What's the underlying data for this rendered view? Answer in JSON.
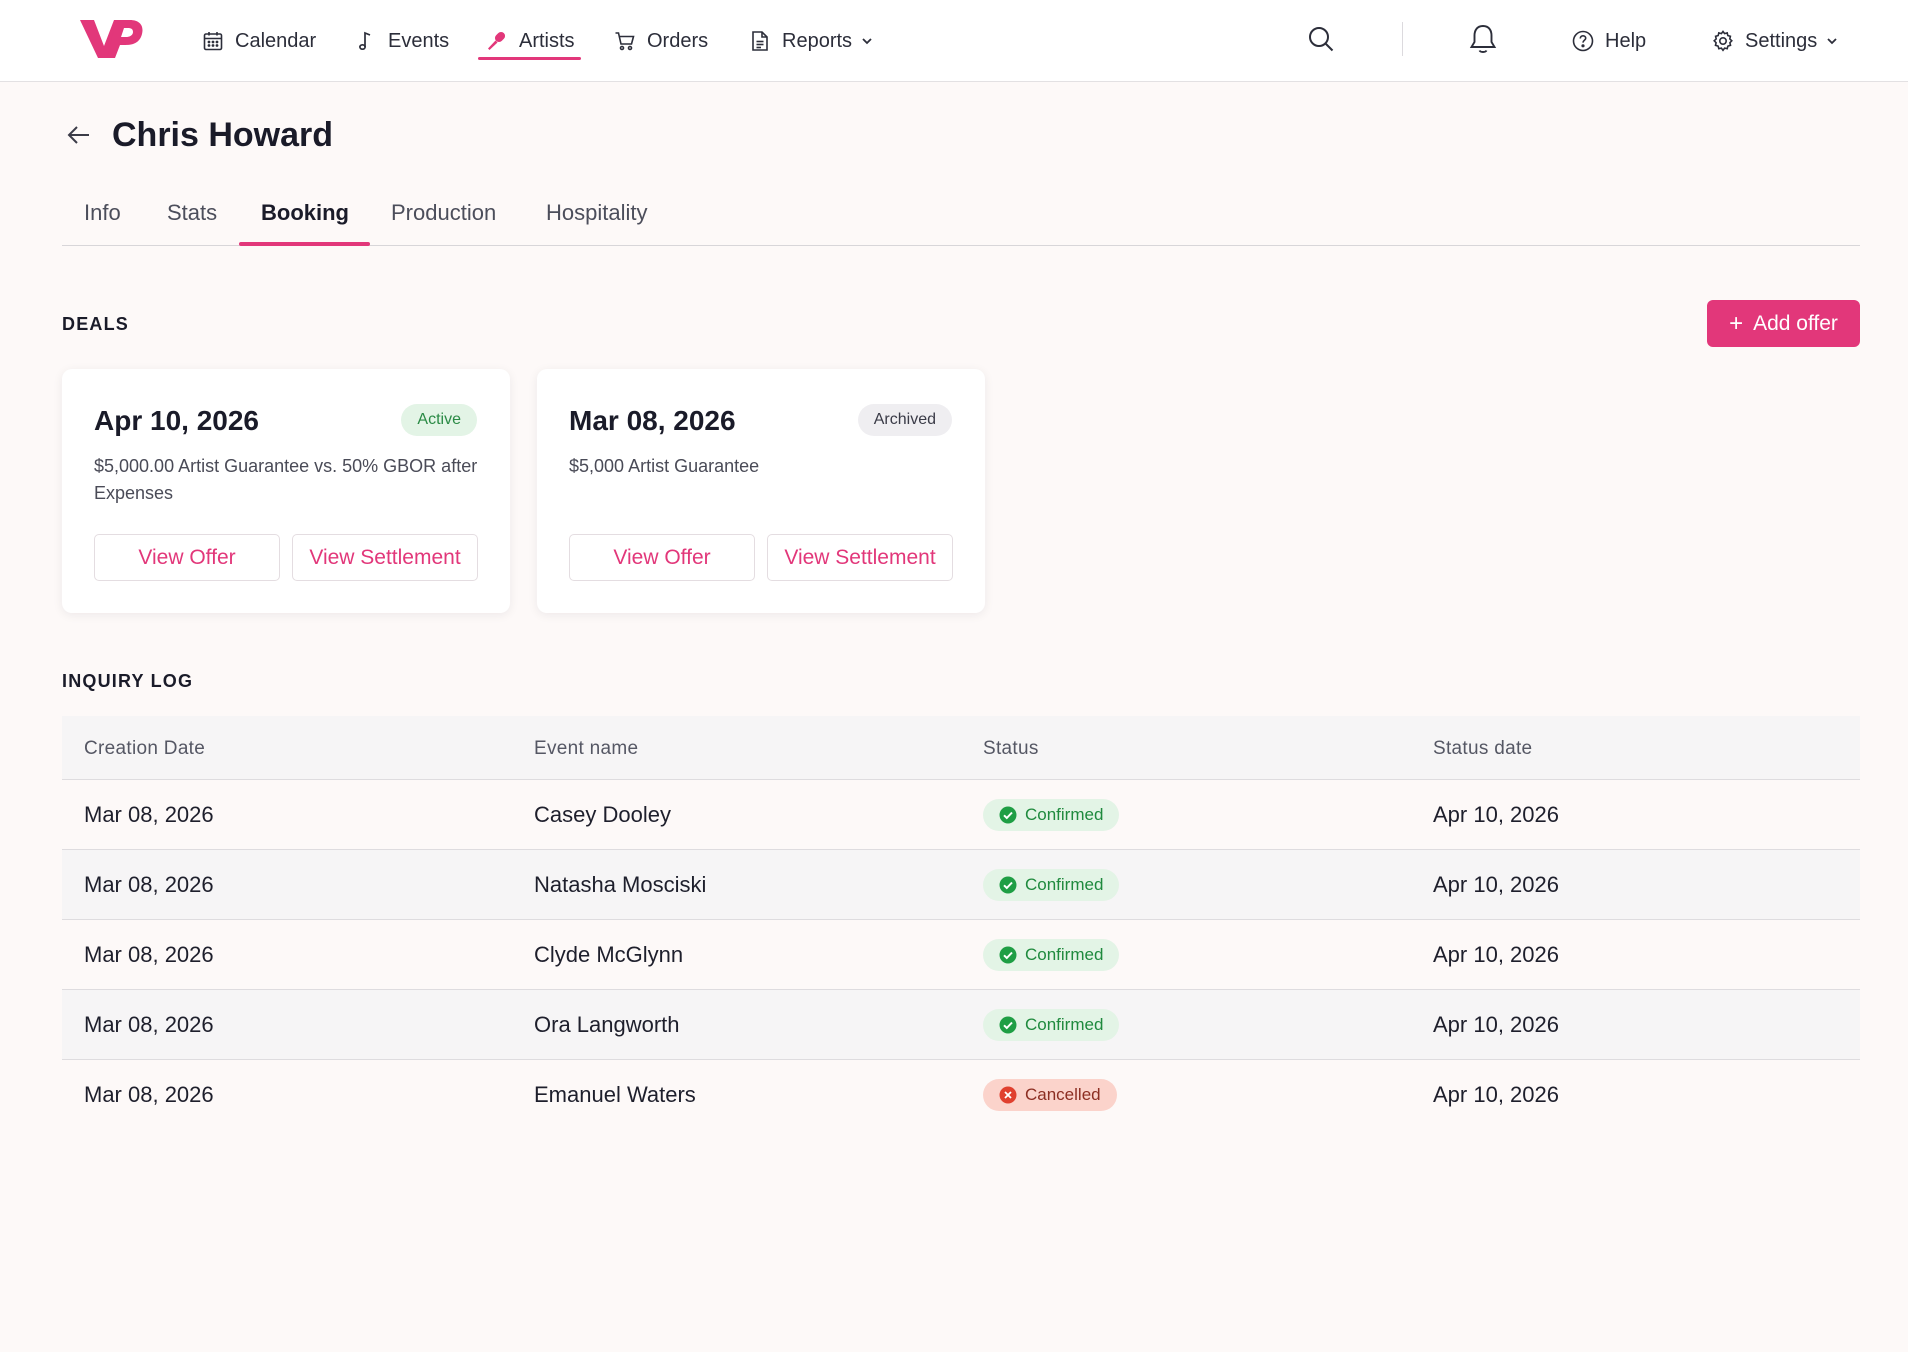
{
  "brand": {
    "accent": "#e2377a",
    "logo_text": "VP"
  },
  "nav": {
    "items": [
      {
        "label": "Calendar",
        "icon": "calendar-icon"
      },
      {
        "label": "Events",
        "icon": "music-note-icon"
      },
      {
        "label": "Artists",
        "icon": "microphone-icon",
        "active": true
      },
      {
        "label": "Orders",
        "icon": "cart-icon"
      },
      {
        "label": "Reports",
        "icon": "document-icon",
        "has_dropdown": true
      }
    ],
    "help_label": "Help",
    "settings_label": "Settings"
  },
  "page": {
    "title": "Chris Howard",
    "tabs": [
      "Info",
      "Stats",
      "Booking",
      "Production",
      "Hospitality"
    ],
    "active_tab": "Booking"
  },
  "deals": {
    "section_title": "DEALS",
    "add_offer_label": "Add offer",
    "cards": [
      {
        "date": "Apr 10, 2026",
        "status": "Active",
        "description": "$5,000.00 Artist Guarantee vs. 50% GBOR after Expenses",
        "view_offer_label": "View Offer",
        "view_settlement_label": "View Settlement"
      },
      {
        "date": "Mar 08, 2026",
        "status": "Archived",
        "description": "$5,000 Artist Guarantee",
        "view_offer_label": "View Offer",
        "view_settlement_label": "View Settlement"
      }
    ]
  },
  "inquiry_log": {
    "section_title": "INQUIRY LOG",
    "columns": [
      "Creation Date",
      "Event name",
      "Status",
      "Status date"
    ],
    "rows": [
      {
        "creation_date": "Mar 08, 2026",
        "event_name": "Casey Dooley",
        "status": "Confirmed",
        "status_date": "Apr 10, 2026"
      },
      {
        "creation_date": "Mar 08, 2026",
        "event_name": "Natasha Mosciski",
        "status": "Confirmed",
        "status_date": "Apr 10, 2026"
      },
      {
        "creation_date": "Mar 08, 2026",
        "event_name": "Clyde McGlynn",
        "status": "Confirmed",
        "status_date": "Apr 10, 2026"
      },
      {
        "creation_date": "Mar 08, 2026",
        "event_name": "Ora Langworth",
        "status": "Confirmed",
        "status_date": "Apr 10, 2026"
      },
      {
        "creation_date": "Mar 08, 2026",
        "event_name": "Emanuel Waters",
        "status": "Cancelled",
        "status_date": "Apr 10, 2026"
      }
    ]
  }
}
